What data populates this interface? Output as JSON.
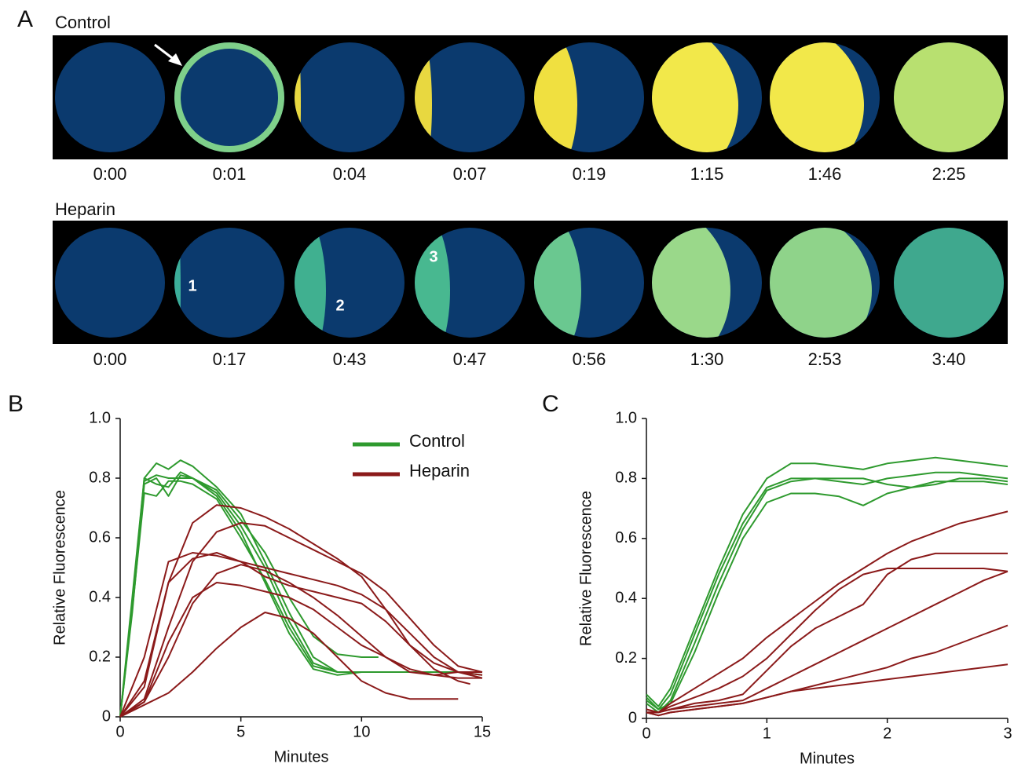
{
  "panels": {
    "a": "A",
    "b": "B",
    "c": "C"
  },
  "strips": [
    {
      "label": "Control",
      "times": [
        "0:00",
        "0:01",
        "0:04",
        "0:07",
        "0:19",
        "1:15",
        "1:46",
        "2:25"
      ]
    },
    {
      "label": "Heparin",
      "times": [
        "0:00",
        "0:17",
        "0:43",
        "0:47",
        "0:56",
        "1:30",
        "2:53",
        "3:40"
      ],
      "annotations": [
        "1",
        "2",
        "3"
      ]
    }
  ],
  "chart_data": [
    {
      "type": "line",
      "x_label": "Minutes",
      "y_label": "Relative Fluorescence",
      "xlim": [
        0,
        15
      ],
      "xticks": [
        0,
        5,
        10,
        15
      ],
      "ylim": [
        0,
        1
      ],
      "yticks": [
        0,
        0.2,
        0.4,
        0.6,
        0.8,
        {
          "value": 1,
          "label": "1.0"
        }
      ],
      "legend": "top-right",
      "series": [
        {
          "name": "Control",
          "color": "#2e9a2e",
          "lines": [
            {
              "x": [
                0,
                0.5,
                1,
                1.5,
                2,
                2.5,
                3,
                4,
                5,
                6,
                7,
                8,
                9,
                10,
                11,
                12,
                13,
                14,
                15
              ],
              "values": [
                0,
                0.4,
                0.8,
                0.85,
                0.83,
                0.86,
                0.84,
                0.77,
                0.68,
                0.52,
                0.35,
                0.2,
                0.15,
                0.15,
                0.15,
                0.15,
                0.15,
                0.15,
                0.15
              ]
            },
            {
              "x": [
                0,
                0.5,
                1,
                1.5,
                2,
                2.5,
                3,
                4,
                5,
                6,
                7,
                8,
                9,
                10,
                11,
                12,
                13,
                14,
                15
              ],
              "values": [
                0,
                0.35,
                0.78,
                0.8,
                0.74,
                0.81,
                0.8,
                0.74,
                0.62,
                0.45,
                0.28,
                0.16,
                0.14,
                0.15,
                0.15,
                0.15,
                0.15,
                0.15,
                0.14
              ]
            },
            {
              "x": [
                0,
                0.5,
                1,
                1.5,
                2,
                2.5,
                3,
                4,
                5,
                6,
                7,
                8,
                9,
                10,
                11,
                12,
                13,
                14,
                15
              ],
              "values": [
                0,
                0.38,
                0.8,
                0.78,
                0.77,
                0.82,
                0.8,
                0.75,
                0.64,
                0.5,
                0.32,
                0.18,
                0.15,
                0.15,
                0.15,
                0.15,
                0.15,
                0.15,
                0.15
              ]
            },
            {
              "x": [
                0,
                0.5,
                1,
                1.5,
                2,
                2.5,
                3,
                4,
                5,
                6,
                7,
                8,
                9,
                10,
                11,
                12,
                13,
                14,
                15
              ],
              "values": [
                0,
                0.36,
                0.75,
                0.74,
                0.79,
                0.79,
                0.78,
                0.73,
                0.6,
                0.46,
                0.3,
                0.17,
                0.15,
                0.15,
                0.15,
                0.15,
                0.15,
                0.15,
                0.15
              ]
            },
            {
              "x": [
                0,
                0.5,
                1,
                1.5,
                2,
                2.5,
                3,
                4,
                5,
                6,
                7,
                8,
                9,
                10,
                10.7
              ],
              "values": [
                0,
                0.37,
                0.79,
                0.81,
                0.8,
                0.8,
                0.8,
                0.76,
                0.66,
                0.55,
                0.4,
                0.27,
                0.21,
                0.2,
                0.2
              ]
            }
          ]
        },
        {
          "name": "Heparin",
          "color": "#8b1a1a",
          "lines": [
            {
              "x": [
                0,
                1,
                2,
                3,
                4,
                5,
                6,
                7,
                8,
                9,
                10,
                11,
                12,
                13,
                14,
                14.5
              ],
              "values": [
                0,
                0.1,
                0.45,
                0.65,
                0.71,
                0.7,
                0.67,
                0.63,
                0.58,
                0.53,
                0.47,
                0.36,
                0.24,
                0.16,
                0.12,
                0.11
              ]
            },
            {
              "x": [
                0,
                1,
                2,
                3,
                4,
                5,
                6,
                7,
                8,
                9,
                10,
                11,
                12,
                13,
                14,
                15
              ],
              "values": [
                0,
                0.06,
                0.3,
                0.52,
                0.62,
                0.65,
                0.64,
                0.6,
                0.56,
                0.52,
                0.48,
                0.42,
                0.33,
                0.24,
                0.17,
                0.15
              ]
            },
            {
              "x": [
                0,
                1,
                2,
                3,
                4,
                5,
                6,
                7,
                8,
                9,
                10,
                11,
                12,
                13,
                14,
                15
              ],
              "values": [
                0,
                0.2,
                0.52,
                0.55,
                0.54,
                0.52,
                0.5,
                0.48,
                0.46,
                0.44,
                0.41,
                0.36,
                0.28,
                0.2,
                0.15,
                0.13
              ]
            },
            {
              "x": [
                0,
                1,
                2,
                3,
                4,
                5,
                6,
                7,
                8,
                9,
                10,
                11,
                12,
                13,
                14,
                15
              ],
              "values": [
                0,
                0.12,
                0.45,
                0.53,
                0.55,
                0.52,
                0.47,
                0.44,
                0.42,
                0.4,
                0.38,
                0.32,
                0.24,
                0.18,
                0.15,
                0.14
              ]
            },
            {
              "x": [
                0,
                1,
                2,
                3,
                4,
                5,
                6,
                7,
                8,
                9,
                10,
                11,
                12,
                13,
                14,
                15
              ],
              "values": [
                0,
                0.05,
                0.2,
                0.38,
                0.48,
                0.51,
                0.49,
                0.45,
                0.4,
                0.34,
                0.27,
                0.2,
                0.15,
                0.14,
                0.15,
                0.15
              ]
            },
            {
              "x": [
                0,
                1,
                2,
                3,
                4,
                5,
                6,
                7,
                8,
                9,
                10,
                11,
                12,
                13,
                14
              ],
              "values": [
                0,
                0.04,
                0.08,
                0.15,
                0.23,
                0.3,
                0.35,
                0.33,
                0.28,
                0.2,
                0.12,
                0.08,
                0.06,
                0.06,
                0.06
              ]
            },
            {
              "x": [
                0,
                1,
                2,
                3,
                4,
                5,
                6,
                7,
                8,
                9,
                10,
                11,
                12,
                13,
                14,
                15
              ],
              "values": [
                0,
                0.05,
                0.25,
                0.4,
                0.45,
                0.44,
                0.42,
                0.4,
                0.36,
                0.3,
                0.24,
                0.2,
                0.16,
                0.14,
                0.13,
                0.13
              ]
            }
          ]
        }
      ]
    },
    {
      "type": "line",
      "x_label": "Minutes",
      "y_label": "Relative Fluorescence",
      "xlim": [
        0,
        3
      ],
      "xticks": [
        0,
        1,
        2,
        3
      ],
      "ylim": [
        0,
        1
      ],
      "yticks": [
        0,
        0.2,
        0.4,
        0.6,
        0.8,
        {
          "value": 1,
          "label": "1.0"
        }
      ],
      "series": [
        {
          "name": "Control",
          "color": "#2e9a2e",
          "lines": [
            {
              "x": [
                0,
                0.1,
                0.2,
                0.4,
                0.6,
                0.8,
                1,
                1.2,
                1.4,
                1.6,
                1.8,
                2,
                2.2,
                2.4,
                2.6,
                2.8,
                3
              ],
              "values": [
                0.08,
                0.04,
                0.1,
                0.3,
                0.5,
                0.68,
                0.8,
                0.85,
                0.85,
                0.84,
                0.83,
                0.85,
                0.86,
                0.87,
                0.86,
                0.85,
                0.84
              ]
            },
            {
              "x": [
                0,
                0.1,
                0.2,
                0.4,
                0.6,
                0.8,
                1,
                1.2,
                1.4,
                1.6,
                1.8,
                2,
                2.2,
                2.4,
                2.6,
                2.8,
                3
              ],
              "values": [
                0.06,
                0.03,
                0.08,
                0.28,
                0.48,
                0.65,
                0.77,
                0.8,
                0.8,
                0.79,
                0.78,
                0.8,
                0.81,
                0.82,
                0.82,
                0.81,
                0.8
              ]
            },
            {
              "x": [
                0,
                0.1,
                0.2,
                0.4,
                0.6,
                0.8,
                1,
                1.2,
                1.4,
                1.6,
                1.8,
                2,
                2.2,
                2.4,
                2.6,
                2.8,
                3
              ],
              "values": [
                0.05,
                0.02,
                0.06,
                0.25,
                0.45,
                0.63,
                0.76,
                0.79,
                0.8,
                0.8,
                0.8,
                0.78,
                0.77,
                0.78,
                0.8,
                0.8,
                0.79
              ]
            },
            {
              "x": [
                0,
                0.1,
                0.2,
                0.4,
                0.6,
                0.8,
                1,
                1.2,
                1.4,
                1.6,
                1.8,
                2,
                2.2,
                2.4,
                2.6,
                2.8,
                3
              ],
              "values": [
                0.07,
                0.03,
                0.05,
                0.22,
                0.42,
                0.6,
                0.72,
                0.75,
                0.75,
                0.74,
                0.71,
                0.75,
                0.77,
                0.79,
                0.79,
                0.79,
                0.78
              ]
            }
          ]
        },
        {
          "name": "Heparin",
          "color": "#8b1a1a",
          "lines": [
            {
              "x": [
                0,
                0.1,
                0.2,
                0.4,
                0.6,
                0.8,
                1,
                1.2,
                1.4,
                1.6,
                1.8,
                2,
                2.2,
                2.4,
                2.6,
                2.8,
                3
              ],
              "values": [
                0.03,
                0.02,
                0.05,
                0.1,
                0.15,
                0.2,
                0.27,
                0.33,
                0.39,
                0.45,
                0.5,
                0.55,
                0.59,
                0.62,
                0.65,
                0.67,
                0.69
              ]
            },
            {
              "x": [
                0,
                0.1,
                0.2,
                0.4,
                0.6,
                0.8,
                1,
                1.2,
                1.4,
                1.6,
                1.8,
                2,
                2.2,
                2.4,
                2.6,
                2.8,
                3
              ],
              "values": [
                0.03,
                0.02,
                0.04,
                0.07,
                0.1,
                0.14,
                0.2,
                0.28,
                0.36,
                0.43,
                0.48,
                0.5,
                0.5,
                0.5,
                0.5,
                0.5,
                0.49
              ]
            },
            {
              "x": [
                0,
                0.1,
                0.2,
                0.4,
                0.6,
                0.8,
                1,
                1.2,
                1.4,
                1.6,
                1.8,
                2,
                2.2,
                2.4,
                2.6,
                2.8,
                3
              ],
              "values": [
                0.02,
                0.02,
                0.03,
                0.05,
                0.06,
                0.08,
                0.16,
                0.24,
                0.3,
                0.34,
                0.38,
                0.48,
                0.53,
                0.55,
                0.55,
                0.55,
                0.55
              ]
            },
            {
              "x": [
                0,
                0.1,
                0.2,
                0.4,
                0.6,
                0.8,
                1,
                1.2,
                1.4,
                1.6,
                1.8,
                2,
                2.2,
                2.4,
                2.6,
                2.8,
                3
              ],
              "values": [
                0.02,
                0.02,
                0.03,
                0.04,
                0.05,
                0.06,
                0.1,
                0.14,
                0.18,
                0.22,
                0.26,
                0.3,
                0.34,
                0.38,
                0.42,
                0.46,
                0.49
              ]
            },
            {
              "x": [
                0,
                0.1,
                0.2,
                0.4,
                0.6,
                0.8,
                1,
                1.2,
                1.4,
                1.6,
                1.8,
                2,
                2.2,
                2.4,
                2.6,
                2.8,
                3
              ],
              "values": [
                0.02,
                0.01,
                0.02,
                0.03,
                0.04,
                0.05,
                0.07,
                0.09,
                0.11,
                0.13,
                0.15,
                0.17,
                0.2,
                0.22,
                0.25,
                0.28,
                0.31
              ]
            },
            {
              "x": [
                0,
                0.1,
                0.2,
                0.4,
                0.6,
                0.8,
                1,
                1.2,
                1.4,
                1.6,
                1.8,
                2,
                2.2,
                2.4,
                2.6,
                2.8,
                3
              ],
              "values": [
                0.02,
                0.01,
                0.02,
                0.03,
                0.04,
                0.05,
                0.07,
                0.09,
                0.1,
                0.11,
                0.12,
                0.13,
                0.14,
                0.15,
                0.16,
                0.17,
                0.18
              ]
            }
          ]
        }
      ]
    }
  ]
}
